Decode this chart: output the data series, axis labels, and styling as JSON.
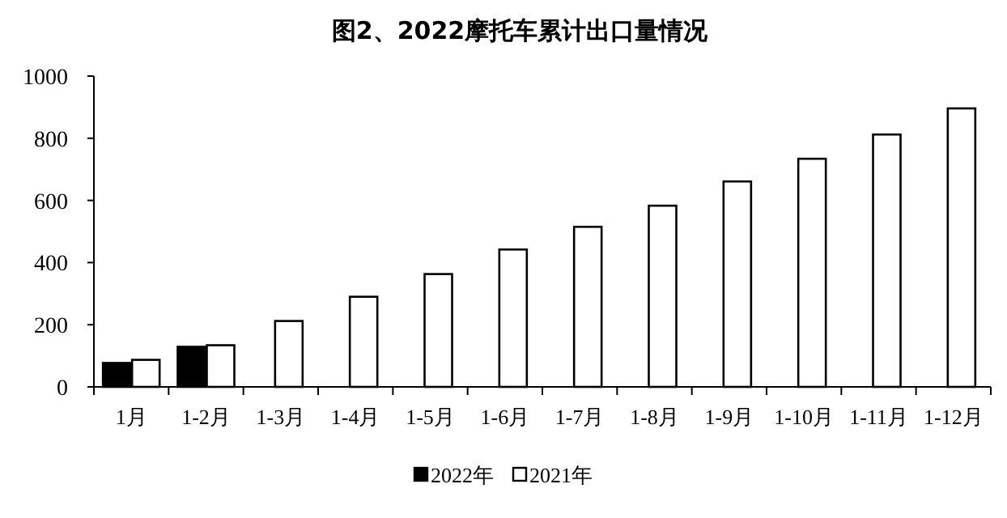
{
  "chart_data": {
    "type": "bar",
    "title": "图2、2022摩托车累计出口量情况",
    "categories": [
      "1月",
      "1-2月",
      "1-3月",
      "1-4月",
      "1-5月",
      "1-6月",
      "1-7月",
      "1-8月",
      "1-9月",
      "1-10月",
      "1-11月",
      "1-12月"
    ],
    "series": [
      {
        "name": "2022年",
        "color": "#000000",
        "values": [
          77,
          129,
          null,
          null,
          null,
          null,
          null,
          null,
          null,
          null,
          null,
          null
        ]
      },
      {
        "name": "2021年",
        "color": "#ffffff",
        "values": [
          87,
          134,
          212,
          290,
          363,
          442,
          515,
          583,
          661,
          734,
          812,
          896
        ]
      }
    ],
    "ylim": [
      0,
      1000
    ],
    "yticks": [
      0,
      200,
      400,
      600,
      800,
      1000
    ],
    "legend": "bottom"
  }
}
